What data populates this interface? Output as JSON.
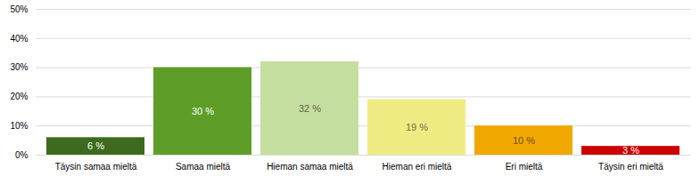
{
  "chart_data": {
    "type": "bar",
    "categories": [
      "Täysin samaa mieltä",
      "Samaa mieltä",
      "Hieman samaa mieltä",
      "Hieman eri mieltä",
      "Eri mieltä",
      "Täysin eri mieltä"
    ],
    "values": [
      6,
      30,
      32,
      19,
      10,
      3
    ],
    "value_labels": [
      "6 %",
      "30 %",
      "32 %",
      "19 %",
      "10 %",
      "3 %"
    ],
    "colors": [
      "#3d6b1e",
      "#5e9e28",
      "#c5dfa0",
      "#f0ec84",
      "#f0a800",
      "#cc0000"
    ],
    "ylim": [
      0,
      50
    ],
    "yticks": [
      {
        "value": 0,
        "label": "0%"
      },
      {
        "value": 10,
        "label": "10%"
      },
      {
        "value": 20,
        "label": "20%"
      },
      {
        "value": 30,
        "label": "30%"
      },
      {
        "value": 40,
        "label": "40%"
      },
      {
        "value": 50,
        "label": "50%"
      }
    ],
    "grid": true,
    "data_labels": true
  }
}
